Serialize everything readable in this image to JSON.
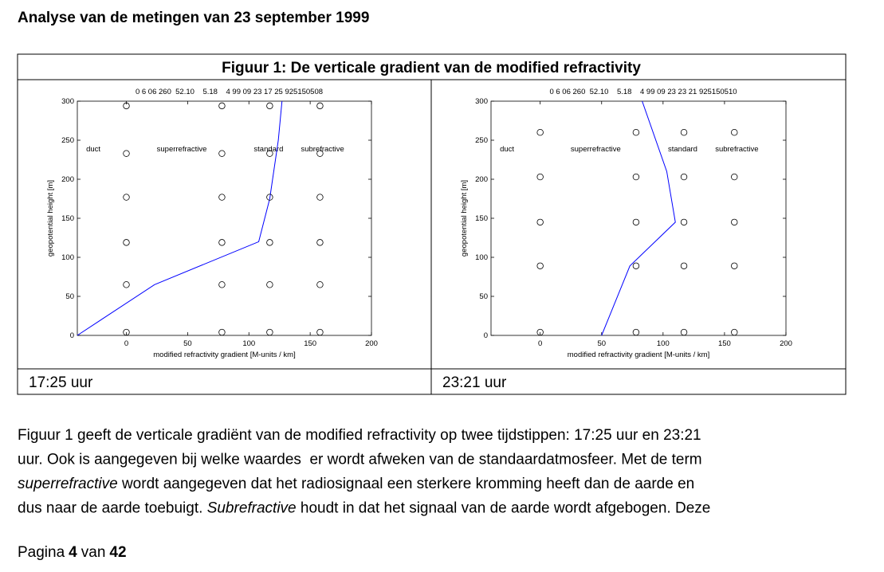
{
  "heading": "Analyse van de metingen van 23 september 1999",
  "figure": {
    "title": "Figuur 1: De verticale gradient van de modified refractivity",
    "captions": [
      "17:25 uur",
      "23:21 uur"
    ]
  },
  "chart_data": [
    {
      "type": "line",
      "top_label": "0 6 06 260  52.10    5.18    4 99 09 23 17 25 925150508",
      "xlabel": "modified refractivity gradient [M-units / km]",
      "ylabel": "geopotential height [m]",
      "xlim": [
        -40,
        200
      ],
      "ylim": [
        0,
        300
      ],
      "xticks": [
        0,
        50,
        100,
        150,
        200
      ],
      "yticks": [
        0,
        50,
        100,
        150,
        200,
        250,
        300
      ],
      "annotations": [
        "duct",
        "superrefractive",
        "standard",
        "subrefractive"
      ],
      "series": [
        {
          "color": "#0000ff",
          "x": [
            -40,
            23,
            108,
            117,
            124,
            127
          ],
          "values": [
            0,
            65,
            120,
            175,
            250,
            300
          ]
        },
        {
          "marker": "circle",
          "color": "#000000",
          "x": [
            0,
            78,
            117,
            158,
            0,
            78,
            117,
            158,
            0,
            78,
            117,
            158,
            0,
            78,
            117,
            158,
            0,
            78,
            117,
            158,
            0,
            78,
            117,
            158
          ],
          "values": [
            4,
            4,
            4,
            4,
            65,
            65,
            65,
            65,
            119,
            119,
            119,
            119,
            177,
            177,
            177,
            177,
            233,
            233,
            233,
            233,
            294,
            294,
            294,
            294
          ]
        }
      ]
    },
    {
      "type": "line",
      "top_label": "0 6 06 260  52.10    5.18    4 99 09 23 23 21 925150510",
      "xlabel": "modified refractivity gradient [M-units / km]",
      "ylabel": "geopotential height [m]",
      "xlim": [
        -40,
        200
      ],
      "ylim": [
        0,
        300
      ],
      "xticks": [
        0,
        50,
        100,
        150,
        200
      ],
      "yticks": [
        0,
        50,
        100,
        150,
        200,
        250,
        300
      ],
      "annotations": [
        "duct",
        "superrefractive",
        "standard",
        "subrefractive"
      ],
      "series": [
        {
          "color": "#0000ff",
          "x": [
            50,
            73,
            110,
            103,
            83
          ],
          "values": [
            0,
            89,
            145,
            210,
            300
          ]
        },
        {
          "marker": "circle",
          "color": "#000000",
          "x": [
            0,
            78,
            117,
            158,
            0,
            78,
            117,
            158,
            0,
            78,
            117,
            158,
            0,
            78,
            117,
            158,
            0,
            78,
            117,
            158
          ],
          "values": [
            4,
            4,
            4,
            4,
            89,
            89,
            89,
            89,
            145,
            145,
            145,
            145,
            203,
            203,
            203,
            203,
            260,
            260,
            260,
            260
          ]
        }
      ]
    }
  ],
  "paragraph": {
    "lines": [
      [
        {
          "text": "Figuur 1 geeft de verticale gradiënt van de modified refractivity op twee tijdstippen: 17:25 uur en 23:21"
        }
      ],
      [
        {
          "text": "uur. Ook is aangegeven bij welke waardes  er wordt afweken van de standaardatmosfeer. Met de term"
        }
      ],
      [
        {
          "text": "superrefractive",
          "italic": true
        },
        {
          "text": " wordt aangegeven dat het radiosignaal een sterkere kromming heeft dan de aarde en"
        }
      ],
      [
        {
          "text": "dus naar de aarde toebuigt. "
        },
        {
          "text": "Subrefractive",
          "italic": true
        },
        {
          "text": " houdt in dat het signaal van de aarde wordt afgebogen. Deze"
        }
      ]
    ]
  },
  "footer": {
    "prefix": "Pagina",
    "page": 4,
    "of": "van",
    "total": 42
  }
}
